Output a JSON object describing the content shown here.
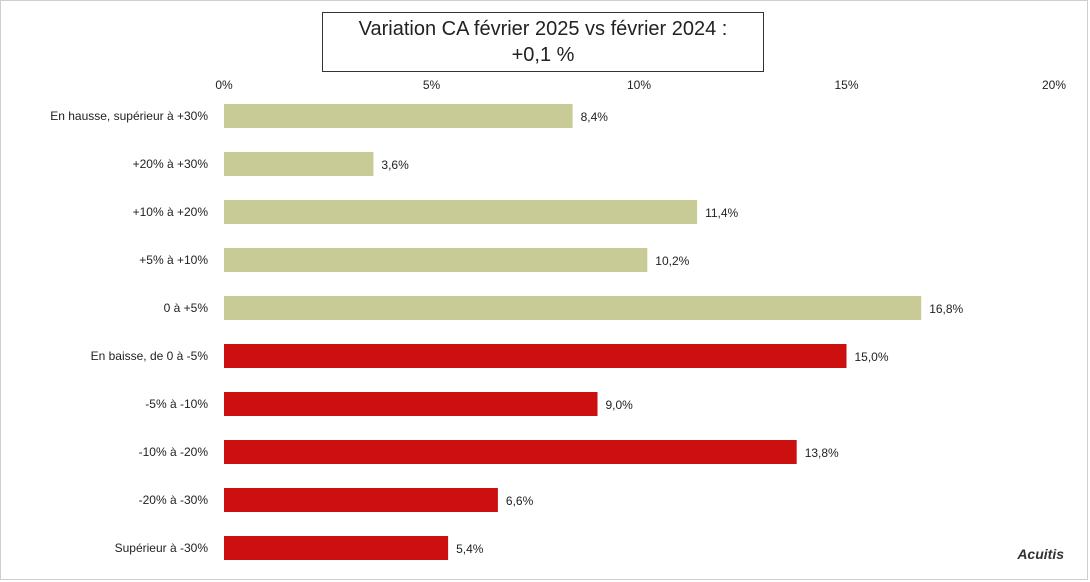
{
  "chart_data": {
    "type": "bar",
    "orientation": "horizontal",
    "title_lines": [
      "Variation CA février 2025 vs février 2024 :",
      "+0,1 %"
    ],
    "x_ticks": [
      "0%",
      "5%",
      "10%",
      "15%",
      "20%"
    ],
    "xlim": [
      0,
      20
    ],
    "categories": [
      "En hausse, supérieur à +30%",
      "+20% à +30%",
      "+10% à +20%",
      "+5% à +10%",
      "0 à +5%",
      "En baisse, de 0 à -5%",
      "-5% à -10%",
      "-10% à -20%",
      "-20% à -30%",
      "Supérieur à -30%"
    ],
    "values": [
      8.4,
      3.6,
      11.4,
      10.2,
      16.8,
      15.0,
      9.0,
      13.8,
      6.6,
      5.4
    ],
    "value_labels": [
      "8,4%",
      "3,6%",
      "11,4%",
      "10,2%",
      "16,8%",
      "15,0%",
      "9,0%",
      "13,8%",
      "6,6%",
      "5,4%"
    ],
    "colors": [
      "#c8cb96",
      "#c8cb96",
      "#c8cb96",
      "#c8cb96",
      "#c8cb96",
      "#cc1010",
      "#cc1010",
      "#cc1010",
      "#cc1010",
      "#cc1010"
    ],
    "legend": "none",
    "grid": false
  },
  "branding": {
    "logo_text": "Acuitis"
  }
}
